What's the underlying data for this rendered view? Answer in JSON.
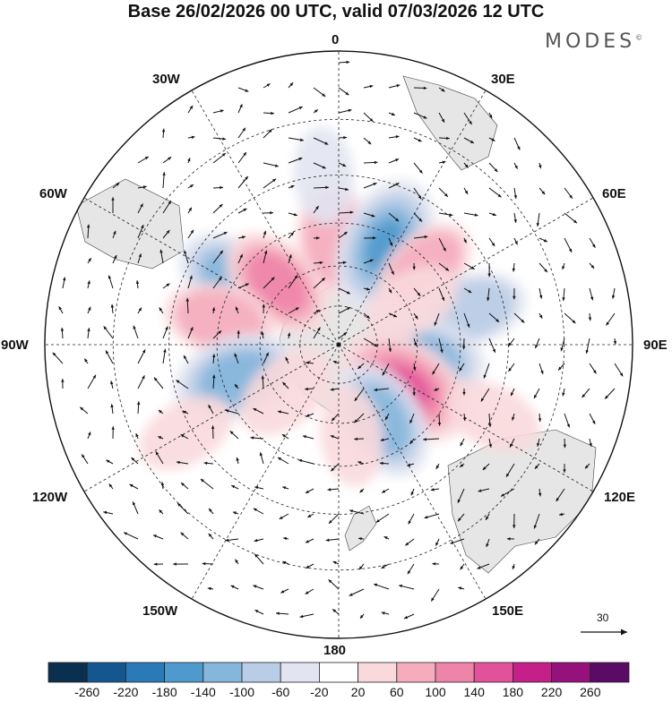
{
  "title": "Base 26/02/2026 00 UTC, valid 07/03/2026 12 UTC",
  "logo": {
    "text": "MODES",
    "mark": "©"
  },
  "longitude_labels": {
    "top": "0",
    "bottom": "180",
    "left": "90W",
    "right": "90E",
    "upper_left_30": "30W",
    "upper_left_60": "60W",
    "upper_right_30": "30E",
    "upper_right_60": "60E",
    "lower_left_120": "120W",
    "lower_left_150": "150W",
    "lower_right_120": "120E",
    "lower_right_150": "150E"
  },
  "reference_vector": {
    "label": "30",
    "icon": "arrow-right-icon"
  },
  "colorbar": {
    "ticks": [
      "-260",
      "-220",
      "-180",
      "-140",
      "-100",
      "-60",
      "-20",
      "20",
      "60",
      "100",
      "140",
      "180",
      "220",
      "260"
    ],
    "colors": [
      "#0b2f4e",
      "#14578f",
      "#2a7ab8",
      "#4f9acc",
      "#85b6dc",
      "#b9cde6",
      "#e2e4f1",
      "#ffffff",
      "#f9d9dc",
      "#f5adbd",
      "#ef84aa",
      "#e2529a",
      "#c5208a",
      "#95117c",
      "#5b0a66"
    ]
  },
  "map": {
    "projection": "south-polar-stereographic",
    "land_color": "#e6e6e6",
    "anomalies": [
      {
        "lon": -3,
        "lat": -50,
        "value": 90
      },
      {
        "lon": 25,
        "lat": -49,
        "value": -170
      },
      {
        "lon": 48,
        "lat": -47,
        "value": 70
      },
      {
        "lon": 75,
        "lat": -40,
        "value": -80
      },
      {
        "lon": -58,
        "lat": -45,
        "value": -120
      },
      {
        "lon": -45,
        "lat": -57,
        "value": 110
      },
      {
        "lon": -78,
        "lat": -45,
        "value": 80
      },
      {
        "lon": -108,
        "lat": -50,
        "value": -140
      },
      {
        "lon": -132,
        "lat": -63,
        "value": 60
      },
      {
        "lon": 100,
        "lat": -58,
        "value": -140
      },
      {
        "lon": 123,
        "lat": -60,
        "value": 180
      },
      {
        "lon": 150,
        "lat": -57,
        "value": -120
      },
      {
        "lon": 172,
        "lat": -55,
        "value": 40
      },
      {
        "lon": -120,
        "lat": -28,
        "value": 40
      },
      {
        "lon": 115,
        "lat": -30,
        "value": 40
      },
      {
        "lon": -5,
        "lat": -30,
        "value": -30
      },
      {
        "lon": 60,
        "lat": -58,
        "value": 40
      }
    ]
  }
}
